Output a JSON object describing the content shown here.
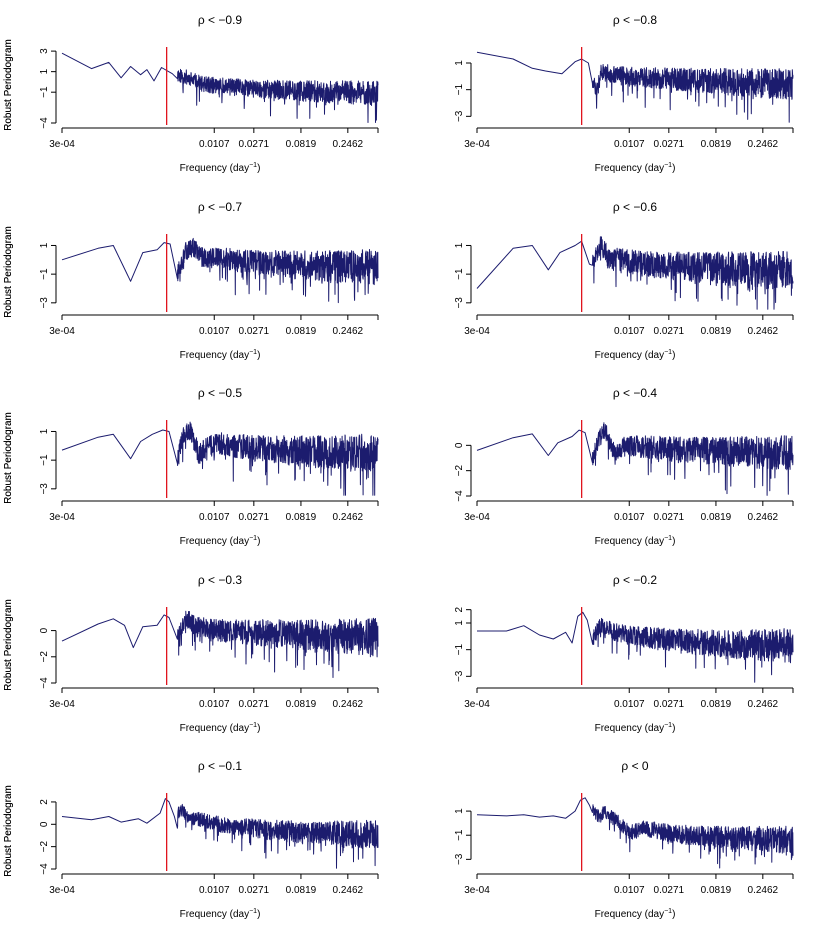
{
  "style": {
    "series_color": "#1c1c6e",
    "marker_color": "#e0141e",
    "axis_color": "#000000"
  },
  "x_axis": {
    "label_prefix": "Frequency (day",
    "label_exponent": "−1",
    "label_suffix": ")",
    "scale": "log",
    "tick_labels": [
      "3e-04",
      "0.0107",
      "0.0271",
      "0.0819",
      "0.2462"
    ],
    "tick_values": [
      0.0003,
      0.0107,
      0.0271,
      0.0819,
      0.2462
    ],
    "xlim": [
      0.0003,
      0.5
    ]
  },
  "y_axis": {
    "label": "Robust Periodogram"
  },
  "marker_frequency": 0.0035,
  "chart_data": [
    {
      "type": "line",
      "title": "ρ <  −0.9",
      "ylim": [
        -4,
        3.4
      ],
      "yticks": [
        3,
        1,
        -1,
        -4
      ],
      "ytick_labels": [
        "3",
        "1",
        "−1",
        "−4"
      ],
      "seed": 11,
      "noise_base": 0.7,
      "noise_rate": 0.5,
      "trend": [
        [
          0.0003,
          2.8
        ],
        [
          0.0006,
          1.3
        ],
        [
          0.0009,
          1.9
        ],
        [
          0.0012,
          0.4
        ],
        [
          0.0015,
          1.5
        ],
        [
          0.0019,
          0.7
        ],
        [
          0.0022,
          1.2
        ],
        [
          0.0026,
          0.1
        ],
        [
          0.0031,
          1.4
        ],
        [
          0.004,
          0.8
        ],
        [
          0.0055,
          0.5
        ],
        [
          0.008,
          -0.2
        ],
        [
          0.012,
          -0.4
        ],
        [
          0.03,
          -0.7
        ],
        [
          0.1,
          -0.9
        ],
        [
          0.5,
          -1.1
        ]
      ]
    },
    {
      "type": "line",
      "title": "ρ <  −0.8",
      "ylim": [
        -3.5,
        2.2
      ],
      "yticks": [
        1,
        -1,
        -3
      ],
      "ytick_labels": [
        "1",
        "−1",
        "−3"
      ],
      "seed": 12,
      "noise_base": 0.6,
      "noise_rate": 0.6,
      "trend": [
        [
          0.0003,
          1.8
        ],
        [
          0.0007,
          1.3
        ],
        [
          0.0011,
          0.6
        ],
        [
          0.0015,
          0.4
        ],
        [
          0.0022,
          0.2
        ],
        [
          0.003,
          1.1
        ],
        [
          0.0035,
          1.3
        ],
        [
          0.0041,
          1.0
        ],
        [
          0.0046,
          -0.5
        ],
        [
          0.005,
          -1.2
        ],
        [
          0.0055,
          0.3
        ],
        [
          0.007,
          0.2
        ],
        [
          0.01,
          0.0
        ],
        [
          0.03,
          -0.2
        ],
        [
          0.1,
          -0.4
        ],
        [
          0.5,
          -0.6
        ]
      ]
    },
    {
      "type": "line",
      "title": "ρ <  −0.7",
      "ylim": [
        -3.5,
        1.8
      ],
      "yticks": [
        1,
        -1,
        -3
      ],
      "ytick_labels": [
        "1",
        "−1",
        "−3"
      ],
      "seed": 13,
      "noise_base": 0.6,
      "noise_rate": 0.65,
      "trend": [
        [
          0.0003,
          0.0
        ],
        [
          0.0007,
          0.8
        ],
        [
          0.001,
          1.0
        ],
        [
          0.0015,
          -1.5
        ],
        [
          0.002,
          0.5
        ],
        [
          0.0028,
          0.7
        ],
        [
          0.0033,
          1.2
        ],
        [
          0.0038,
          1.1
        ],
        [
          0.0045,
          -1.0
        ],
        [
          0.0055,
          0.6
        ],
        [
          0.0065,
          0.9
        ],
        [
          0.008,
          0.2
        ],
        [
          0.012,
          0.1
        ],
        [
          0.03,
          -0.2
        ],
        [
          0.1,
          -0.4
        ],
        [
          0.5,
          -0.5
        ]
      ]
    },
    {
      "type": "line",
      "title": "ρ <  −0.6",
      "ylim": [
        -3.5,
        1.8
      ],
      "yticks": [
        1,
        -1,
        -3
      ],
      "ytick_labels": [
        "1",
        "−1",
        "−3"
      ],
      "seed": 14,
      "noise_base": 0.7,
      "noise_rate": 0.7,
      "trend": [
        [
          0.0003,
          -2.0
        ],
        [
          0.0007,
          0.8
        ],
        [
          0.0011,
          1.0
        ],
        [
          0.0016,
          -0.7
        ],
        [
          0.0021,
          0.5
        ],
        [
          0.003,
          1.0
        ],
        [
          0.0035,
          1.3
        ],
        [
          0.0042,
          -0.3
        ],
        [
          0.005,
          0.4
        ],
        [
          0.0055,
          1.2
        ],
        [
          0.0065,
          0.1
        ],
        [
          0.009,
          0.0
        ],
        [
          0.015,
          -0.3
        ],
        [
          0.05,
          -0.5
        ],
        [
          0.5,
          -0.8
        ]
      ]
    },
    {
      "type": "line",
      "title": "ρ <  −0.5",
      "ylim": [
        -3.5,
        1.8
      ],
      "yticks": [
        1,
        -1,
        -3
      ],
      "ytick_labels": [
        "1",
        "−1",
        "−3"
      ],
      "seed": 15,
      "noise_base": 0.65,
      "noise_rate": 0.7,
      "trend": [
        [
          0.0003,
          -0.3
        ],
        [
          0.0007,
          0.6
        ],
        [
          0.001,
          0.8
        ],
        [
          0.0015,
          -0.9
        ],
        [
          0.0019,
          0.3
        ],
        [
          0.0025,
          0.8
        ],
        [
          0.0032,
          1.1
        ],
        [
          0.0037,
          1.0
        ],
        [
          0.0045,
          -0.9
        ],
        [
          0.0052,
          0.7
        ],
        [
          0.006,
          1.1
        ],
        [
          0.0075,
          -0.6
        ],
        [
          0.01,
          0.2
        ],
        [
          0.03,
          -0.2
        ],
        [
          0.1,
          -0.4
        ],
        [
          0.5,
          -0.5
        ]
      ]
    },
    {
      "type": "line",
      "title": "ρ <  −0.4",
      "ylim": [
        -4,
        2.0
      ],
      "yticks": [
        0,
        -2,
        -4
      ],
      "ytick_labels": [
        "0",
        "−2",
        "−4"
      ],
      "seed": 16,
      "noise_base": 0.7,
      "noise_rate": 0.7,
      "trend": [
        [
          0.0003,
          -0.4
        ],
        [
          0.0007,
          0.6
        ],
        [
          0.0011,
          0.9
        ],
        [
          0.0016,
          -0.8
        ],
        [
          0.002,
          0.2
        ],
        [
          0.0028,
          0.7
        ],
        [
          0.0033,
          1.2
        ],
        [
          0.0038,
          1.0
        ],
        [
          0.0045,
          -1.0
        ],
        [
          0.0052,
          0.4
        ],
        [
          0.006,
          1.3
        ],
        [
          0.0075,
          -0.5
        ],
        [
          0.01,
          0.0
        ],
        [
          0.03,
          -0.3
        ],
        [
          0.1,
          -0.5
        ],
        [
          0.5,
          -0.6
        ]
      ]
    },
    {
      "type": "line",
      "title": "ρ <  −0.3",
      "ylim": [
        -4,
        1.8
      ],
      "yticks": [
        0,
        -2,
        -4
      ],
      "ytick_labels": [
        "0",
        "−2",
        "−4"
      ],
      "seed": 17,
      "noise_base": 0.7,
      "noise_rate": 0.75,
      "trend": [
        [
          0.0003,
          -0.8
        ],
        [
          0.0007,
          0.5
        ],
        [
          0.001,
          0.9
        ],
        [
          0.0013,
          0.4
        ],
        [
          0.0016,
          -1.3
        ],
        [
          0.002,
          0.3
        ],
        [
          0.0028,
          0.4
        ],
        [
          0.0033,
          1.2
        ],
        [
          0.0037,
          1.0
        ],
        [
          0.0045,
          -0.3
        ],
        [
          0.0055,
          1.0
        ],
        [
          0.007,
          0.3
        ],
        [
          0.012,
          0.0
        ],
        [
          0.04,
          -0.2
        ],
        [
          0.15,
          -0.4
        ],
        [
          0.5,
          -0.5
        ]
      ]
    },
    {
      "type": "line",
      "title": "ρ <  −0.2",
      "ylim": [
        -3.5,
        2.2
      ],
      "yticks": [
        2,
        1,
        -1,
        -3
      ],
      "ytick_labels": [
        "2",
        "1",
        "−1",
        "−3"
      ],
      "seed": 18,
      "noise_base": 0.6,
      "noise_rate": 0.7,
      "trend": [
        [
          0.0003,
          0.4
        ],
        [
          0.0006,
          0.4
        ],
        [
          0.0009,
          0.8
        ],
        [
          0.0013,
          0.1
        ],
        [
          0.0018,
          -0.2
        ],
        [
          0.0024,
          0.3
        ],
        [
          0.0028,
          -0.5
        ],
        [
          0.0032,
          1.5
        ],
        [
          0.0036,
          1.8
        ],
        [
          0.004,
          1.2
        ],
        [
          0.0045,
          -0.2
        ],
        [
          0.0055,
          0.9
        ],
        [
          0.007,
          0.4
        ],
        [
          0.01,
          0.1
        ],
        [
          0.03,
          -0.3
        ],
        [
          0.1,
          -0.6
        ],
        [
          0.5,
          -0.7
        ]
      ]
    },
    {
      "type": "line",
      "title": "ρ <  −0.1",
      "ylim": [
        -4,
        2.8
      ],
      "yticks": [
        2,
        0,
        -2,
        -4
      ],
      "ytick_labels": [
        "2",
        "0",
        "−2",
        "−4"
      ],
      "seed": 19,
      "noise_base": 0.55,
      "noise_rate": 0.75,
      "trend": [
        [
          0.0003,
          0.7
        ],
        [
          0.0006,
          0.4
        ],
        [
          0.0009,
          0.7
        ],
        [
          0.0012,
          0.2
        ],
        [
          0.0018,
          0.5
        ],
        [
          0.0022,
          0.1
        ],
        [
          0.003,
          1.0
        ],
        [
          0.0034,
          2.3
        ],
        [
          0.0037,
          2.0
        ],
        [
          0.0042,
          0.7
        ],
        [
          0.005,
          1.3
        ],
        [
          0.006,
          0.6
        ],
        [
          0.008,
          0.4
        ],
        [
          0.012,
          0.0
        ],
        [
          0.03,
          -0.4
        ],
        [
          0.1,
          -0.8
        ],
        [
          0.5,
          -0.9
        ]
      ]
    },
    {
      "type": "line",
      "title": "ρ <  0",
      "ylim": [
        -3.8,
        2.5
      ],
      "yticks": [
        1,
        -1,
        -3
      ],
      "ytick_labels": [
        "1",
        "−1",
        "−3"
      ],
      "seed": 20,
      "noise_base": 0.5,
      "noise_rate": 0.65,
      "trend": [
        [
          0.0003,
          0.7
        ],
        [
          0.0006,
          0.6
        ],
        [
          0.0009,
          0.7
        ],
        [
          0.0013,
          0.5
        ],
        [
          0.0018,
          0.6
        ],
        [
          0.0024,
          0.4
        ],
        [
          0.003,
          1.0
        ],
        [
          0.0034,
          1.9
        ],
        [
          0.0038,
          2.1
        ],
        [
          0.0042,
          1.5
        ],
        [
          0.005,
          0.6
        ],
        [
          0.006,
          0.9
        ],
        [
          0.008,
          0.2
        ],
        [
          0.011,
          -0.8
        ],
        [
          0.015,
          -0.4
        ],
        [
          0.03,
          -0.9
        ],
        [
          0.1,
          -1.2
        ],
        [
          0.5,
          -1.4
        ]
      ]
    }
  ]
}
